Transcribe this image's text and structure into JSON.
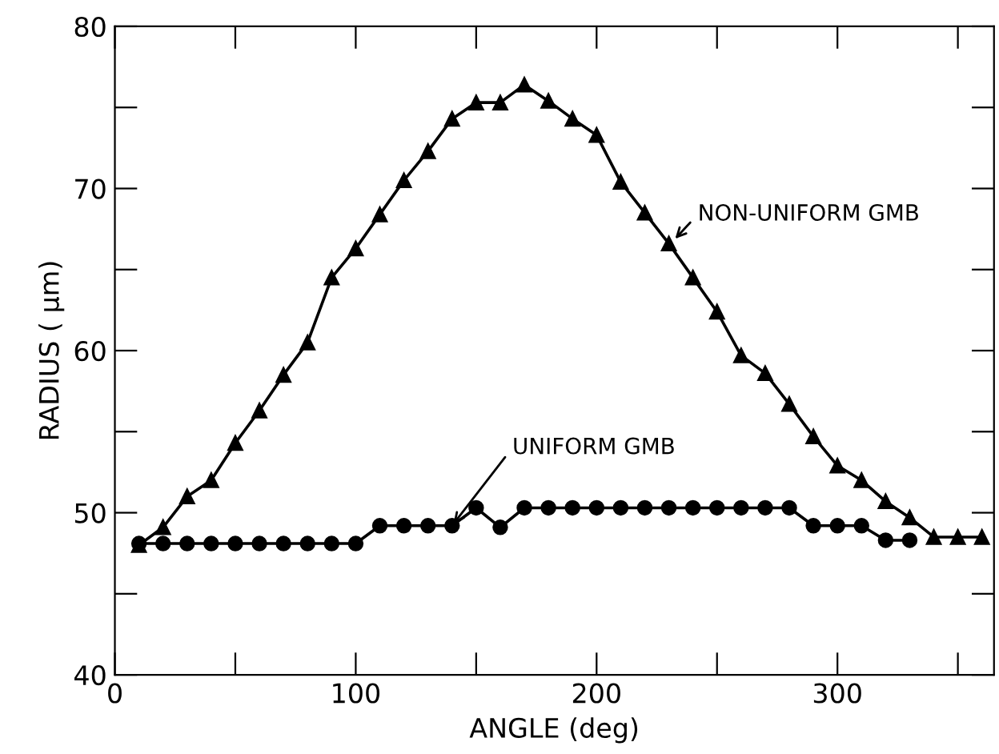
{
  "chart_data": {
    "type": "line",
    "xlabel": "ANGLE (deg)",
    "ylabel": "RADIUS ( μm)",
    "x": [
      10,
      20,
      30,
      40,
      50,
      60,
      70,
      80,
      90,
      100,
      110,
      120,
      130,
      140,
      150,
      160,
      170,
      180,
      190,
      200,
      210,
      220,
      230,
      240,
      250,
      260,
      270,
      280,
      290,
      300,
      310,
      320,
      330,
      340,
      350,
      360
    ],
    "series": [
      {
        "color": "#000000",
        "marker": "triangle",
        "values": [
          48.0,
          49.1,
          51.0,
          52.0,
          54.3,
          56.3,
          58.5,
          60.5,
          64.5,
          66.3,
          68.4,
          70.5,
          72.3,
          74.3,
          75.3,
          75.3,
          76.4,
          75.4,
          74.3,
          73.3,
          70.4,
          68.5,
          66.6,
          64.5,
          62.4,
          59.7,
          58.6,
          56.7,
          54.7,
          52.9,
          52.0,
          50.7,
          49.7,
          48.5,
          48.5,
          48.5
        ]
      },
      {
        "color": "#000000",
        "marker": "circle",
        "values": [
          48.1,
          48.1,
          48.1,
          48.1,
          48.1,
          48.1,
          48.1,
          48.1,
          48.1,
          48.1,
          49.2,
          49.2,
          49.2,
          49.2,
          50.3,
          49.1,
          50.3,
          50.3,
          50.3,
          50.3,
          50.3,
          50.3,
          50.3,
          50.3,
          50.3,
          50.3,
          50.3,
          50.3,
          49.2,
          49.2,
          49.2,
          48.3,
          48.3,
          null,
          null,
          null
        ]
      }
    ],
    "annotations": [
      {
        "text": "NON-UNIFORM GMB",
        "x": 232,
        "y": 66.8
      },
      {
        "text": "UNIFORM GMB",
        "x": 140,
        "y": 49.2
      }
    ],
    "xlim": [
      0,
      365
    ],
    "ylim": [
      40,
      80
    ],
    "xticks": [
      0,
      {
        "value": 50,
        "label": null
      },
      100,
      {
        "value": 150,
        "label": null
      },
      200,
      {
        "value": 250,
        "label": null
      },
      300,
      {
        "value": 350,
        "label": null
      }
    ],
    "yticks": [
      40,
      {
        "value": 45,
        "label": null
      },
      50,
      {
        "value": 55,
        "label": null
      },
      60,
      {
        "value": 65,
        "label": null
      },
      70,
      {
        "value": 75,
        "label": null
      },
      80
    ],
    "grid": false,
    "legend": false,
    "line_style": "solid"
  }
}
